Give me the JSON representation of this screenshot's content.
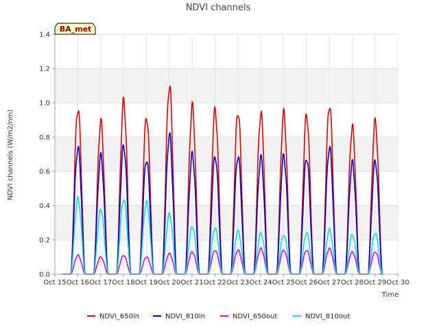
{
  "chart_data": {
    "type": "line",
    "title": "NDVI channels",
    "xlabel": "Time",
    "ylabel": "NDVI channels (W/m2/nm)",
    "badge": "BA_met",
    "ylim": [
      0,
      1.4
    ],
    "yticks": [
      "0.0",
      "0.2",
      "0.4",
      "0.6",
      "0.8",
      "1.0",
      "1.2",
      "1.4"
    ],
    "xlim": [
      15,
      30
    ],
    "xticks": [
      "Oct 15",
      "Oct 16",
      "Oct 17",
      "Oct 18",
      "Oct 19",
      "Oct 20",
      "Oct 21",
      "Oct 22",
      "Oct 23",
      "Oct 24",
      "Oct 25",
      "Oct 26",
      "Oct 27",
      "Oct 28",
      "Oct 29",
      "Oct 30"
    ],
    "legend_position": "bottom",
    "series": [
      {
        "name": "NDVI_650in",
        "color": "#dd0000",
        "daily_peaks": [
          0.97,
          0.89,
          1.01,
          0.92,
          1.1,
          0.98,
          0.96,
          0.95,
          0.94,
          0.94,
          0.93,
          0.99,
          0.86,
          0.89
        ]
      },
      {
        "name": "NDVI_810in",
        "color": "#0000cc",
        "daily_peaks": [
          0.74,
          0.69,
          0.75,
          0.67,
          0.81,
          0.7,
          0.69,
          0.69,
          0.68,
          0.69,
          0.68,
          0.74,
          0.65,
          0.66
        ]
      },
      {
        "name": "NDVI_650out",
        "color": "#dd00dd",
        "daily_peaks": [
          0.11,
          0.1,
          0.11,
          0.1,
          0.12,
          0.13,
          0.14,
          0.14,
          0.15,
          0.14,
          0.14,
          0.15,
          0.13,
          0.13
        ]
      },
      {
        "name": "NDVI_810out",
        "color": "#00e0e0",
        "daily_peaks": [
          0.44,
          0.38,
          0.44,
          0.42,
          0.35,
          0.28,
          0.27,
          0.25,
          0.24,
          0.23,
          0.24,
          0.26,
          0.23,
          0.24
        ]
      }
    ],
    "day_starts": [
      15.7,
      16.7,
      17.7,
      18.7,
      19.7,
      20.7,
      21.7,
      22.7,
      23.7,
      24.7,
      25.7,
      26.7,
      27.7,
      28.7
    ],
    "x_start": 15.3,
    "x_end": 29.2
  }
}
